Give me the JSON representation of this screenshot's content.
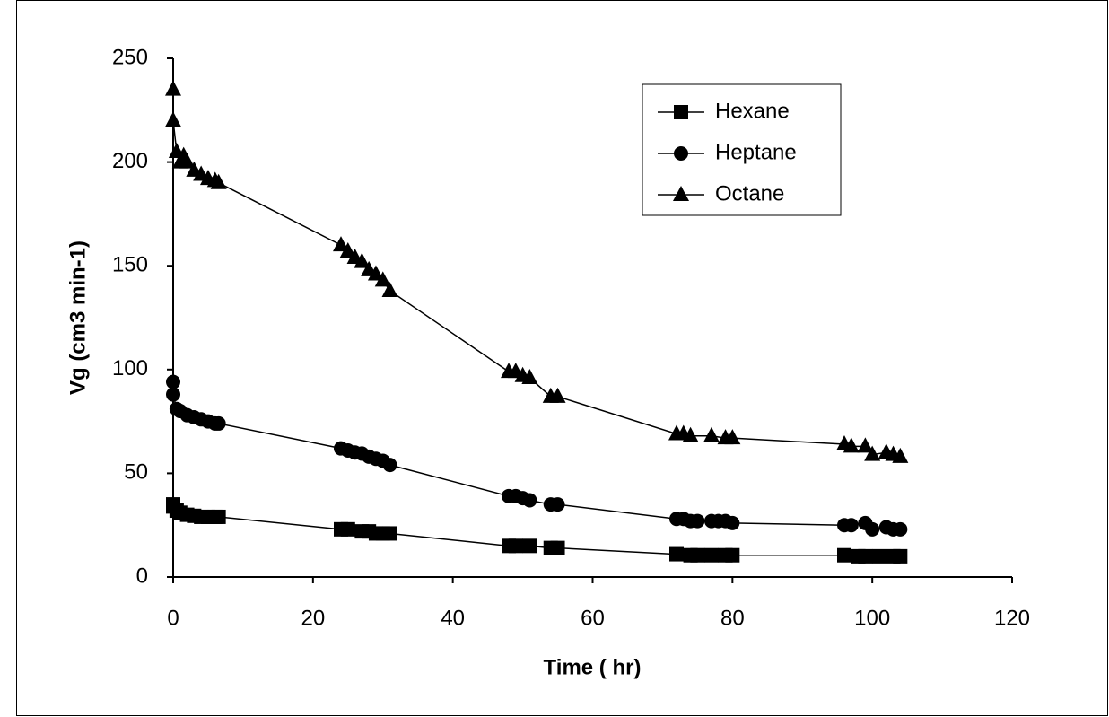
{
  "chart_data": {
    "type": "line",
    "x_label": "Time ( hr)",
    "y_label": "Vg  (cm3 min-1)",
    "xlim": [
      0,
      120
    ],
    "xticks": [
      0,
      20,
      40,
      60,
      80,
      100,
      120
    ],
    "ylim": [
      0,
      250
    ],
    "yticks": [
      0,
      50,
      100,
      150,
      200,
      250
    ],
    "grid": false,
    "legend": "upper right",
    "series": [
      {
        "name": "Hexane",
        "color": "#000000",
        "marker": "square",
        "x": [
          0,
          0,
          0.5,
          1,
          2,
          3,
          4,
          5,
          6,
          6.5,
          24,
          25,
          27,
          28,
          29,
          30,
          31,
          48,
          49,
          51,
          54,
          55,
          72,
          74,
          75,
          77,
          79,
          80,
          96,
          98,
          99,
          101,
          103,
          104
        ],
        "values": [
          35,
          34,
          32,
          31,
          30,
          29.5,
          29,
          29,
          29,
          29,
          23,
          23,
          22,
          22,
          21,
          21,
          21,
          15,
          15,
          15,
          14,
          14,
          11,
          10.5,
          10.5,
          10.5,
          10.5,
          10.5,
          10.5,
          10,
          10,
          10,
          10,
          10
        ]
      },
      {
        "name": "Heptane",
        "color": "#000000",
        "marker": "circle",
        "x": [
          0,
          0,
          0.5,
          1,
          2,
          3,
          4,
          5,
          6,
          6.5,
          24,
          25,
          26,
          27,
          28,
          29,
          30,
          31,
          48,
          49,
          50,
          51,
          54,
          55,
          72,
          73,
          74,
          75,
          77,
          78,
          79,
          80,
          96,
          97,
          99,
          100,
          102,
          103,
          104
        ],
        "values": [
          94,
          88,
          81,
          80,
          78,
          77,
          76,
          75,
          74,
          74,
          62,
          61,
          60,
          59.5,
          58,
          57,
          56,
          54,
          39,
          39,
          38,
          37,
          35,
          35,
          28,
          28,
          27,
          27,
          27,
          27,
          27,
          26,
          25,
          25,
          26,
          23,
          24,
          23,
          23
        ]
      },
      {
        "name": "Octane",
        "color": "#000000",
        "marker": "triangle",
        "x": [
          0,
          0,
          0.5,
          1,
          1.5,
          2,
          3,
          4,
          5,
          6,
          6.5,
          24,
          25,
          26,
          27,
          28,
          29,
          30,
          31,
          48,
          49,
          50,
          51,
          54,
          55,
          72,
          73,
          74,
          77,
          79,
          80,
          96,
          97,
          99,
          100,
          102,
          103,
          104
        ],
        "values": [
          235,
          220,
          205,
          200,
          203,
          200,
          196,
          194,
          192,
          191,
          190,
          160,
          157,
          154,
          152,
          148,
          146,
          143,
          138,
          99,
          99,
          97,
          96,
          87,
          87,
          69,
          69,
          68,
          68,
          67,
          67,
          64,
          63,
          63,
          59,
          60,
          59,
          58
        ]
      }
    ]
  }
}
